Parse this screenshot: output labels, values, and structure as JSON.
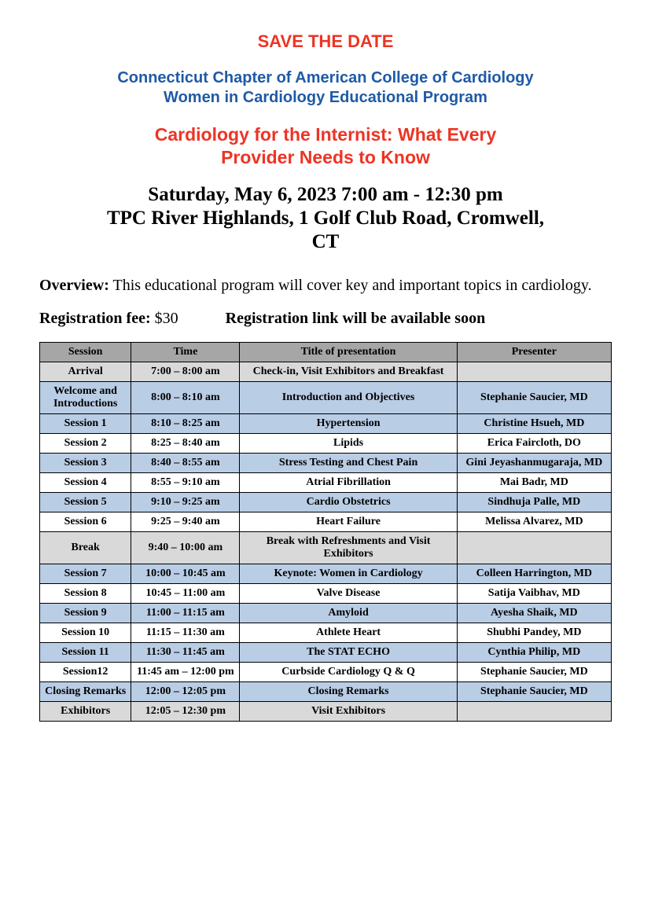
{
  "colors": {
    "red": "#ed3424",
    "blue": "#1f5aa6",
    "black": "#000000",
    "header_bg": "#a6a6a6",
    "row_grey": "#d9d9d9",
    "row_blue": "#b9cde5",
    "row_white": "#ffffff",
    "border": "#000000"
  },
  "header": {
    "save_the_date": "SAVE THE DATE",
    "org": "Connecticut Chapter of American College of Cardiology",
    "program": "Women in Cardiology Educational Program",
    "title_l1": "Cardiology for the Internist:  What Every",
    "title_l2": "Provider Needs to Know",
    "datetime": "Saturday, May 6, 2023      7:00 am - 12:30 pm",
    "venue_l1": "TPC River Highlands, 1 Golf Club Road, Cromwell,",
    "venue_l2": "CT"
  },
  "overview": {
    "label": "Overview:",
    "text": "  This educational program will cover key and important topics in cardiology."
  },
  "registration": {
    "fee_label": "Registration fee:",
    "fee_value": "  $30",
    "link_text": "Registration link will be available soon"
  },
  "schedule": {
    "columns": [
      "Session",
      "Time",
      "Title of presentation",
      "Presenter"
    ],
    "rows": [
      {
        "bg": "row_grey",
        "session": "Arrival",
        "time": "7:00 – 8:00 am",
        "title": "Check-in, Visit Exhibitors and Breakfast",
        "presenter": ""
      },
      {
        "bg": "row_blue",
        "session": "Welcome and Introductions",
        "time": "8:00 – 8:10 am",
        "title": "Introduction and Objectives",
        "presenter": "Stephanie Saucier, MD"
      },
      {
        "bg": "row_blue",
        "session": "Session 1",
        "time": "8:10 – 8:25 am",
        "title": "Hypertension",
        "presenter": "Christine Hsueh, MD"
      },
      {
        "bg": "row_white",
        "session": "Session 2",
        "time": "8:25 – 8:40 am",
        "title": "Lipids",
        "presenter": "Erica Faircloth, DO"
      },
      {
        "bg": "row_blue",
        "session": "Session 3",
        "time": "8:40 – 8:55 am",
        "title": "Stress Testing and Chest Pain",
        "presenter": "Gini Jeyashanmugaraja, MD"
      },
      {
        "bg": "row_white",
        "session": "Session 4",
        "time": "8:55 – 9:10 am",
        "title": "Atrial Fibrillation",
        "presenter": "Mai Badr, MD"
      },
      {
        "bg": "row_blue",
        "session": "Session 5",
        "time": "9:10 – 9:25 am",
        "title": "Cardio Obstetrics",
        "presenter": "Sindhuja Palle, MD"
      },
      {
        "bg": "row_white",
        "session": "Session 6",
        "time": "9:25 – 9:40 am",
        "title": "Heart Failure",
        "presenter": "Melissa Alvarez, MD"
      },
      {
        "bg": "row_grey",
        "session": "Break",
        "time": "9:40 – 10:00 am",
        "title": "Break with Refreshments and Visit Exhibitors",
        "presenter": ""
      },
      {
        "bg": "row_blue",
        "session": "Session 7",
        "time": "10:00 – 10:45 am",
        "title": "Keynote:  Women in Cardiology",
        "presenter": "Colleen Harrington, MD"
      },
      {
        "bg": "row_white",
        "session": "Session 8",
        "time": "10:45 – 11:00 am",
        "title": "Valve Disease",
        "presenter": "Satija Vaibhav, MD"
      },
      {
        "bg": "row_blue",
        "session": "Session 9",
        "time": "11:00 – 11:15 am",
        "title": "Amyloid",
        "presenter": "Ayesha Shaik, MD"
      },
      {
        "bg": "row_white",
        "session": "Session 10",
        "time": "11:15 – 11:30 am",
        "title": "Athlete Heart",
        "presenter": "Shubhi Pandey, MD"
      },
      {
        "bg": "row_blue",
        "session": "Session 11",
        "time": "11:30 – 11:45 am",
        "title": "The STAT ECHO",
        "presenter": "Cynthia Philip, MD"
      },
      {
        "bg": "row_white",
        "session": "Session12",
        "time": "11:45 am – 12:00 pm",
        "title": "Curbside Cardiology Q & Q",
        "presenter": "Stephanie Saucier, MD"
      },
      {
        "bg": "row_blue",
        "session": "Closing Remarks",
        "time": "12:00 – 12:05 pm",
        "title": "Closing Remarks",
        "presenter": "Stephanie Saucier, MD"
      },
      {
        "bg": "row_grey",
        "session": "Exhibitors",
        "time": "12:05 – 12:30 pm",
        "title": "Visit Exhibitors",
        "presenter": ""
      }
    ]
  }
}
